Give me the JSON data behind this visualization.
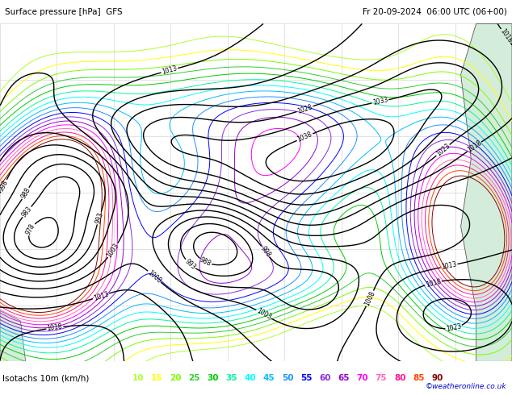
{
  "title_line1": "Surface pressure [hPa]  GFS",
  "title_line2": "Fr 20-09-2024  06:00 UTC (06+00)",
  "legend_label": "Isotachs 10m (km/h)",
  "legend_values": [
    10,
    15,
    20,
    25,
    30,
    35,
    40,
    45,
    50,
    55,
    60,
    65,
    70,
    75,
    80,
    85,
    90
  ],
  "legend_colors": [
    "#adff2f",
    "#ffff00",
    "#7cfc00",
    "#32cd32",
    "#00cd00",
    "#00fa9a",
    "#00ffff",
    "#00bfff",
    "#1e90ff",
    "#0000ff",
    "#8a2be2",
    "#9400d3",
    "#ff00ff",
    "#ff69b4",
    "#ff1493",
    "#ff4500",
    "#8b0000"
  ],
  "watermark": "©weatheronline.co.uk",
  "bg_color": "#ffffff",
  "map_bg": "#ffffff",
  "fig_width": 6.34,
  "fig_height": 4.9,
  "dpi": 100,
  "grid_color": "#cccccc",
  "land_color": "#e8f5e9",
  "sea_color": "#f0f8ff",
  "pressure_color": "#000000",
  "bottom_bar_height": 0.085,
  "title_bar_height": 0.06
}
